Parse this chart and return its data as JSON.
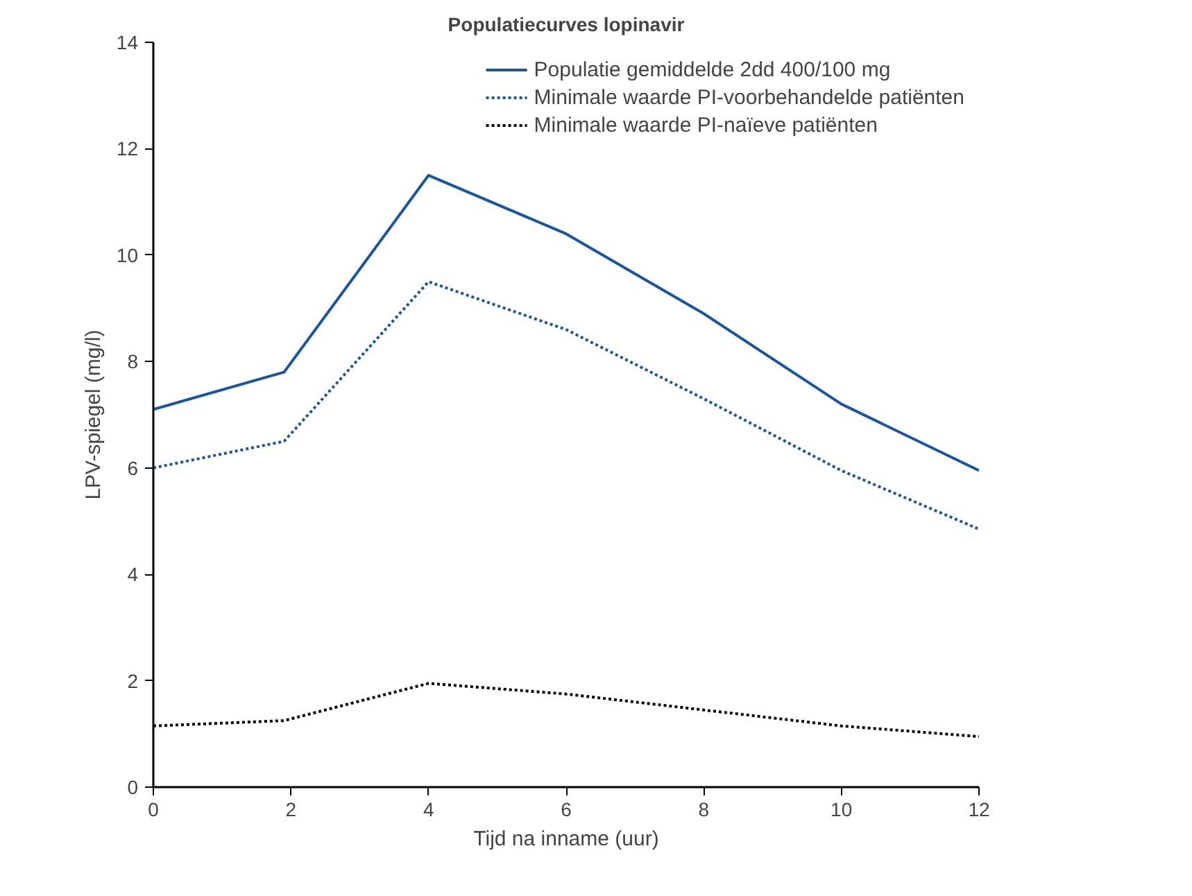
{
  "chart_data": {
    "type": "line",
    "title": "Populatiecurves lopinavir",
    "xlabel": "Tijd na inname (uur)",
    "ylabel": "LPV-spiegel (mg/l)",
    "x": [
      0,
      1.9,
      4,
      6,
      8,
      10,
      12
    ],
    "series": [
      {
        "name": "Populatie gemiddelde 2dd 400/100 mg",
        "color": "#1a55a0",
        "line_style": "solid",
        "values": [
          7.1,
          7.8,
          11.5,
          10.4,
          8.9,
          7.2,
          5.95
        ]
      },
      {
        "name": "Minimale waarde PI-voorbehandelde patiënten",
        "color": "#1a55a0",
        "line_style": "dotted",
        "values": [
          6.0,
          6.5,
          9.5,
          8.6,
          7.3,
          5.95,
          4.85
        ]
      },
      {
        "name": "Minimale waarde PI-naïeve patiënten",
        "color": "#000000",
        "line_style": "dotted",
        "values": [
          1.15,
          1.25,
          1.95,
          1.75,
          1.45,
          1.15,
          0.95
        ]
      }
    ],
    "xlim": [
      0,
      12
    ],
    "xticks": [
      0,
      2,
      4,
      6,
      8,
      10,
      12
    ],
    "ylim": [
      0,
      14
    ],
    "yticks": [
      0,
      2,
      4,
      6,
      8,
      10,
      12,
      14
    ],
    "grid": false,
    "legend": "top right",
    "marker": "none"
  }
}
